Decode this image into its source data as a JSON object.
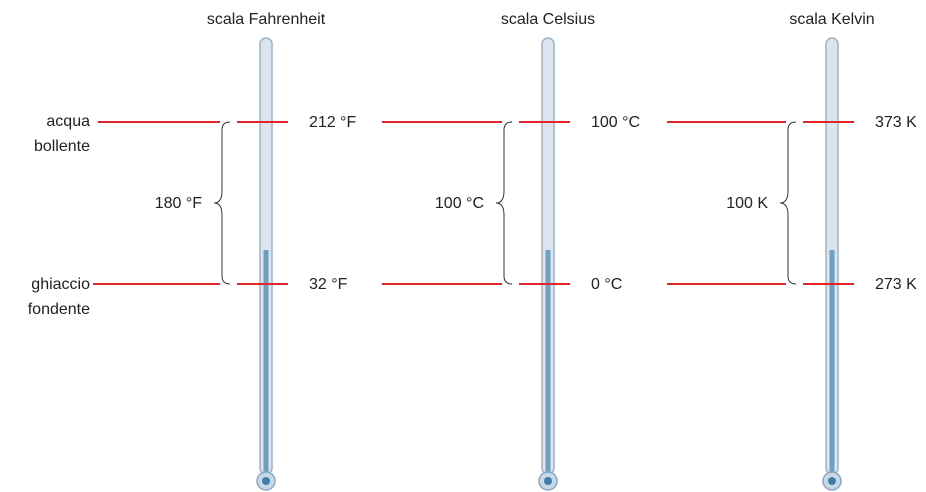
{
  "side_labels": {
    "boiling": [
      "acqua",
      "bollente"
    ],
    "freezing": [
      "ghiaccio",
      "fondente"
    ]
  },
  "scales": [
    {
      "title": "scala Fahrenheit",
      "boiling": "212 °F",
      "freezing": "32 °F",
      "span": "180 °F"
    },
    {
      "title": "scala Celsius",
      "boiling": "100 °C",
      "freezing": "0 °C",
      "span": "100 °C"
    },
    {
      "title": "scala Kelvin",
      "boiling": "373 K",
      "freezing": "273 K",
      "span": "100 K"
    }
  ]
}
